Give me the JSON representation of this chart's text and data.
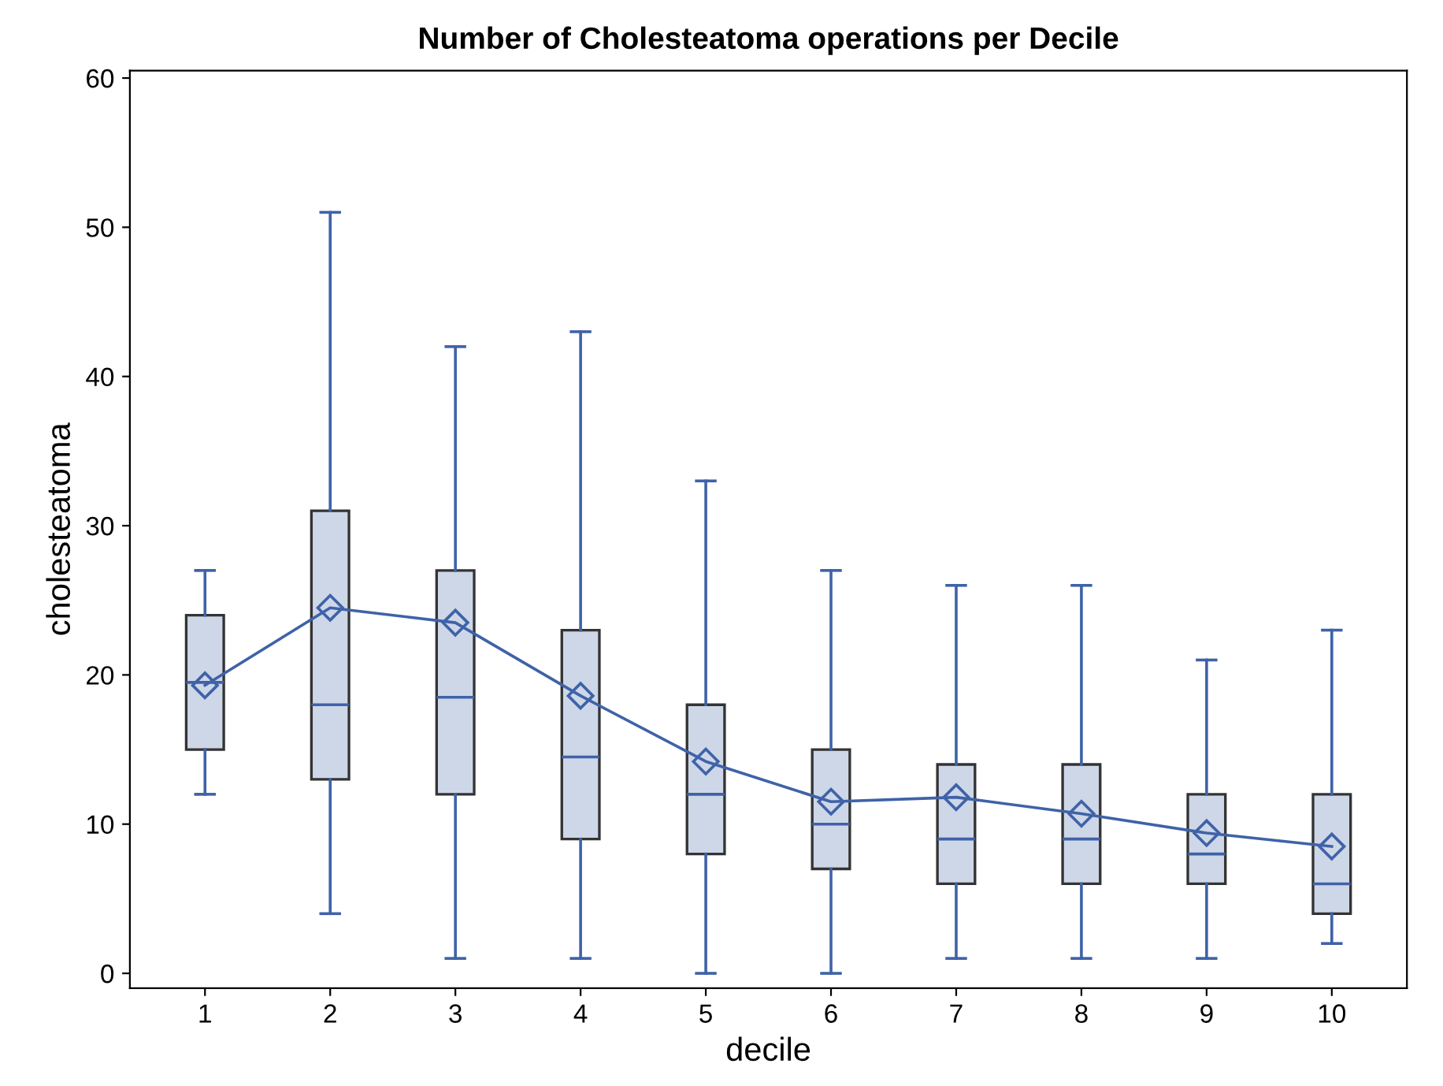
{
  "chart_data": {
    "type": "box",
    "title": "Number of Cholesteatoma operations per Decile",
    "xlabel": "decile",
    "ylabel": "cholesteatoma",
    "categories": [
      "1",
      "2",
      "3",
      "4",
      "5",
      "6",
      "7",
      "8",
      "9",
      "10"
    ],
    "ylim": [
      -1,
      60.5
    ],
    "yticks": [
      0,
      10,
      20,
      30,
      40,
      50,
      60
    ],
    "grid": false,
    "legend": false,
    "series": [
      {
        "type": "box",
        "color": "#cdd7e8",
        "boxes": [
          {
            "low": 12,
            "q1": 15,
            "median": 19.5,
            "q3": 24,
            "high": 27,
            "mean": 19.3
          },
          {
            "low": 4,
            "q1": 13,
            "median": 18,
            "q3": 31,
            "high": 51,
            "mean": 24.5
          },
          {
            "low": 1,
            "q1": 12,
            "median": 18.5,
            "q3": 27,
            "high": 42,
            "mean": 23.5
          },
          {
            "low": 1,
            "q1": 9,
            "median": 14.5,
            "q3": 23,
            "high": 43,
            "mean": 18.6
          },
          {
            "low": 0,
            "q1": 8,
            "median": 12,
            "q3": 18,
            "high": 33,
            "mean": 14.2
          },
          {
            "low": 0,
            "q1": 7,
            "median": 10,
            "q3": 15,
            "high": 27,
            "mean": 11.5
          },
          {
            "low": 1,
            "q1": 6,
            "median": 9,
            "q3": 14,
            "high": 26,
            "mean": 11.8
          },
          {
            "low": 1,
            "q1": 6,
            "median": 9,
            "q3": 14,
            "high": 26,
            "mean": 10.7
          },
          {
            "low": 1,
            "q1": 6,
            "median": 8,
            "q3": 12,
            "high": 21,
            "mean": 9.4
          },
          {
            "low": 2,
            "q1": 4,
            "median": 6,
            "q3": 12,
            "high": 23,
            "mean": 8.5
          }
        ]
      },
      {
        "type": "line",
        "color": "#3f62a8",
        "line_style": "solid",
        "x": [
          "1",
          "2",
          "3",
          "4",
          "5",
          "6",
          "7",
          "8",
          "9",
          "10"
        ],
        "values": [
          19.3,
          24.5,
          23.5,
          18.6,
          14.2,
          11.5,
          11.8,
          10.7,
          9.4,
          8.5
        ]
      }
    ]
  }
}
